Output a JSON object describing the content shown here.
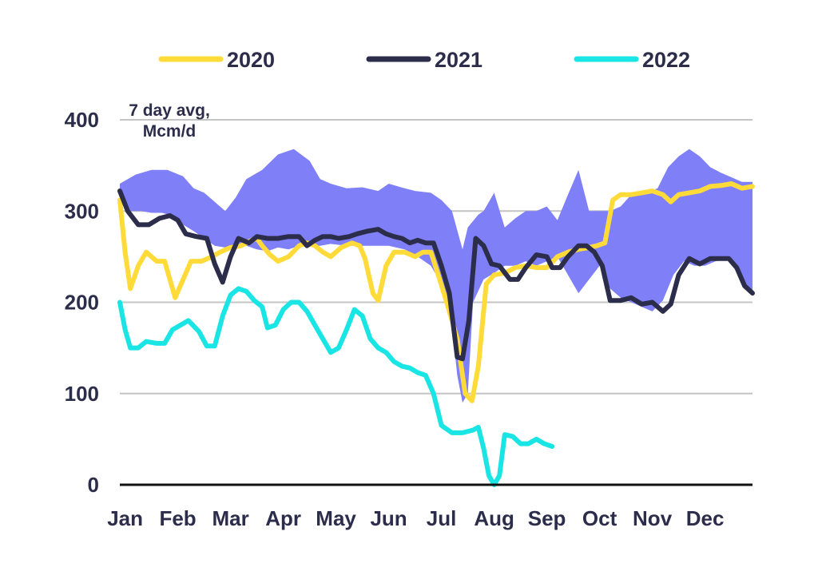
{
  "chart_data": {
    "type": "line",
    "unit_label_line1": "7 day avg,",
    "unit_label_line2": "Mcm/d",
    "ylim": [
      0,
      400
    ],
    "y_ticks": [
      "0",
      "100",
      "200",
      "300",
      "400"
    ],
    "x_ticks": [
      "Jan",
      "Feb",
      "Mar",
      "Apr",
      "May",
      "Jun",
      "Jul",
      "Aug",
      "Sep",
      "Oct",
      "Nov",
      "Dec"
    ],
    "x_range_months": [
      0,
      12
    ],
    "grid": true,
    "legend_position": "top",
    "range_band": {
      "color": "#7f7ff7",
      "upper": [
        [
          0,
          330
        ],
        [
          0.3,
          340
        ],
        [
          0.6,
          345
        ],
        [
          0.9,
          345
        ],
        [
          1.2,
          338
        ],
        [
          1.4,
          325
        ],
        [
          1.6,
          320
        ],
        [
          1.8,
          310
        ],
        [
          2.0,
          300
        ],
        [
          2.2,
          315
        ],
        [
          2.4,
          335
        ],
        [
          2.7,
          345
        ],
        [
          3.0,
          362
        ],
        [
          3.3,
          368
        ],
        [
          3.6,
          355
        ],
        [
          3.8,
          335
        ],
        [
          4.0,
          330
        ],
        [
          4.3,
          325
        ],
        [
          4.6,
          326
        ],
        [
          4.9,
          322
        ],
        [
          5.1,
          330
        ],
        [
          5.4,
          325
        ],
        [
          5.6,
          322
        ],
        [
          5.9,
          320
        ],
        [
          6.1,
          312
        ],
        [
          6.3,
          300
        ],
        [
          6.5,
          258
        ],
        [
          6.6,
          282
        ],
        [
          6.8,
          296
        ],
        [
          6.9,
          300
        ],
        [
          7.1,
          320
        ],
        [
          7.3,
          282
        ],
        [
          7.5,
          292
        ],
        [
          7.7,
          300
        ],
        [
          7.9,
          300
        ],
        [
          8.1,
          305
        ],
        [
          8.3,
          290
        ],
        [
          8.5,
          318
        ],
        [
          8.7,
          345
        ],
        [
          8.9,
          300
        ],
        [
          9.1,
          300
        ],
        [
          9.3,
          300
        ],
        [
          9.5,
          305
        ],
        [
          9.7,
          318
        ],
        [
          10.0,
          320
        ],
        [
          10.2,
          325
        ],
        [
          10.4,
          348
        ],
        [
          10.6,
          360
        ],
        [
          10.8,
          368
        ],
        [
          11.0,
          360
        ],
        [
          11.2,
          348
        ],
        [
          11.4,
          342
        ],
        [
          11.6,
          337
        ],
        [
          11.8,
          332
        ],
        [
          12.0,
          332
        ]
      ],
      "lower": [
        [
          0,
          310
        ],
        [
          0.2,
          300
        ],
        [
          0.4,
          300
        ],
        [
          0.6,
          298
        ],
        [
          0.8,
          298
        ],
        [
          1.0,
          295
        ],
        [
          1.2,
          285
        ],
        [
          1.4,
          278
        ],
        [
          1.6,
          270
        ],
        [
          1.8,
          262
        ],
        [
          2.0,
          260
        ],
        [
          2.2,
          262
        ],
        [
          2.4,
          262
        ],
        [
          2.6,
          258
        ],
        [
          2.8,
          256
        ],
        [
          3.0,
          260
        ],
        [
          3.2,
          258
        ],
        [
          3.4,
          262
        ],
        [
          3.6,
          262
        ],
        [
          3.8,
          262
        ],
        [
          4.0,
          264
        ],
        [
          4.3,
          262
        ],
        [
          4.6,
          262
        ],
        [
          4.9,
          262
        ],
        [
          5.1,
          262
        ],
        [
          5.4,
          258
        ],
        [
          5.6,
          252
        ],
        [
          5.9,
          240
        ],
        [
          6.1,
          220
        ],
        [
          6.3,
          175
        ],
        [
          6.4,
          120
        ],
        [
          6.5,
          90
        ],
        [
          6.6,
          100
        ],
        [
          6.7,
          200
        ],
        [
          6.9,
          225
        ],
        [
          7.1,
          232
        ],
        [
          7.3,
          240
        ],
        [
          7.5,
          240
        ],
        [
          7.7,
          245
        ],
        [
          7.9,
          240
        ],
        [
          8.1,
          245
        ],
        [
          8.3,
          250
        ],
        [
          8.5,
          230
        ],
        [
          8.7,
          210
        ],
        [
          8.9,
          225
        ],
        [
          9.1,
          240
        ],
        [
          9.3,
          215
        ],
        [
          9.5,
          205
        ],
        [
          9.7,
          200
        ],
        [
          9.9,
          195
        ],
        [
          10.1,
          190
        ],
        [
          10.3,
          202
        ],
        [
          10.5,
          230
        ],
        [
          10.7,
          245
        ],
        [
          10.9,
          240
        ],
        [
          11.1,
          240
        ],
        [
          11.3,
          245
        ],
        [
          11.5,
          247
        ],
        [
          11.7,
          240
        ],
        [
          11.9,
          215
        ],
        [
          12.0,
          208
        ]
      ]
    },
    "series": [
      {
        "name": "2020",
        "color": "#ffdb3a",
        "width": 6,
        "points": [
          [
            0,
            312
          ],
          [
            0.1,
            255
          ],
          [
            0.2,
            215
          ],
          [
            0.35,
            240
          ],
          [
            0.5,
            255
          ],
          [
            0.7,
            245
          ],
          [
            0.85,
            245
          ],
          [
            0.95,
            225
          ],
          [
            1.05,
            205
          ],
          [
            1.2,
            225
          ],
          [
            1.35,
            245
          ],
          [
            1.55,
            245
          ],
          [
            1.75,
            250
          ],
          [
            1.9,
            255
          ],
          [
            2.1,
            260
          ],
          [
            2.3,
            262
          ],
          [
            2.5,
            268
          ],
          [
            2.6,
            270
          ],
          [
            2.7,
            262
          ],
          [
            2.85,
            252
          ],
          [
            3.0,
            245
          ],
          [
            3.2,
            250
          ],
          [
            3.4,
            262
          ],
          [
            3.55,
            265
          ],
          [
            3.7,
            262
          ],
          [
            3.85,
            255
          ],
          [
            4.0,
            250
          ],
          [
            4.2,
            260
          ],
          [
            4.4,
            265
          ],
          [
            4.55,
            262
          ],
          [
            4.65,
            248
          ],
          [
            4.8,
            210
          ],
          [
            4.9,
            202
          ],
          [
            5.05,
            240
          ],
          [
            5.2,
            255
          ],
          [
            5.4,
            255
          ],
          [
            5.6,
            250
          ],
          [
            5.75,
            255
          ],
          [
            5.9,
            255
          ],
          [
            6.05,
            228
          ],
          [
            6.2,
            200
          ],
          [
            6.4,
            160
          ],
          [
            6.55,
            100
          ],
          [
            6.68,
            92
          ],
          [
            6.8,
            130
          ],
          [
            6.95,
            220
          ],
          [
            7.1,
            230
          ],
          [
            7.3,
            232
          ],
          [
            7.5,
            238
          ],
          [
            7.7,
            240
          ],
          [
            7.9,
            238
          ],
          [
            8.1,
            238
          ],
          [
            8.3,
            250
          ],
          [
            8.5,
            255
          ],
          [
            8.7,
            258
          ],
          [
            8.9,
            260
          ],
          [
            9.05,
            262
          ],
          [
            9.2,
            265
          ],
          [
            9.35,
            312
          ],
          [
            9.5,
            318
          ],
          [
            9.7,
            318
          ],
          [
            9.9,
            320
          ],
          [
            10.1,
            322
          ],
          [
            10.3,
            318
          ],
          [
            10.45,
            310
          ],
          [
            10.6,
            318
          ],
          [
            10.8,
            320
          ],
          [
            11.0,
            322
          ],
          [
            11.2,
            327
          ],
          [
            11.4,
            328
          ],
          [
            11.6,
            330
          ],
          [
            11.8,
            325
          ],
          [
            12.0,
            327
          ]
        ]
      },
      {
        "name": "2021",
        "color": "#2b2d4a",
        "width": 6,
        "points": [
          [
            0,
            322
          ],
          [
            0.15,
            300
          ],
          [
            0.35,
            285
          ],
          [
            0.55,
            285
          ],
          [
            0.75,
            292
          ],
          [
            0.95,
            295
          ],
          [
            1.1,
            290
          ],
          [
            1.25,
            275
          ],
          [
            1.45,
            272
          ],
          [
            1.65,
            270
          ],
          [
            1.8,
            242
          ],
          [
            1.95,
            222
          ],
          [
            2.1,
            250
          ],
          [
            2.25,
            270
          ],
          [
            2.45,
            265
          ],
          [
            2.6,
            272
          ],
          [
            2.8,
            270
          ],
          [
            3.0,
            270
          ],
          [
            3.2,
            272
          ],
          [
            3.4,
            272
          ],
          [
            3.55,
            262
          ],
          [
            3.7,
            268
          ],
          [
            3.85,
            272
          ],
          [
            4.0,
            272
          ],
          [
            4.15,
            270
          ],
          [
            4.35,
            272
          ],
          [
            4.5,
            275
          ],
          [
            4.7,
            278
          ],
          [
            4.9,
            280
          ],
          [
            5.05,
            275
          ],
          [
            5.2,
            272
          ],
          [
            5.35,
            270
          ],
          [
            5.5,
            265
          ],
          [
            5.65,
            268
          ],
          [
            5.8,
            265
          ],
          [
            5.95,
            265
          ],
          [
            6.1,
            240
          ],
          [
            6.25,
            210
          ],
          [
            6.4,
            140
          ],
          [
            6.5,
            138
          ],
          [
            6.62,
            180
          ],
          [
            6.75,
            270
          ],
          [
            6.9,
            262
          ],
          [
            7.05,
            242
          ],
          [
            7.2,
            240
          ],
          [
            7.4,
            225
          ],
          [
            7.55,
            225
          ],
          [
            7.7,
            238
          ],
          [
            7.9,
            252
          ],
          [
            8.1,
            250
          ],
          [
            8.2,
            238
          ],
          [
            8.35,
            238
          ],
          [
            8.5,
            250
          ],
          [
            8.7,
            262
          ],
          [
            8.85,
            262
          ],
          [
            9.0,
            255
          ],
          [
            9.15,
            240
          ],
          [
            9.3,
            202
          ],
          [
            9.5,
            202
          ],
          [
            9.7,
            205
          ],
          [
            9.9,
            198
          ],
          [
            10.1,
            200
          ],
          [
            10.3,
            190
          ],
          [
            10.45,
            198
          ],
          [
            10.6,
            230
          ],
          [
            10.8,
            248
          ],
          [
            11.0,
            242
          ],
          [
            11.2,
            248
          ],
          [
            11.4,
            248
          ],
          [
            11.55,
            248
          ],
          [
            11.7,
            238
          ],
          [
            11.85,
            218
          ],
          [
            12.0,
            210
          ]
        ]
      },
      {
        "name": "2022",
        "color": "#19e5e5",
        "width": 6,
        "points": [
          [
            0,
            200
          ],
          [
            0.1,
            170
          ],
          [
            0.2,
            150
          ],
          [
            0.35,
            150
          ],
          [
            0.5,
            157
          ],
          [
            0.7,
            155
          ],
          [
            0.85,
            155
          ],
          [
            1.0,
            170
          ],
          [
            1.15,
            175
          ],
          [
            1.3,
            180
          ],
          [
            1.5,
            168
          ],
          [
            1.65,
            152
          ],
          [
            1.8,
            152
          ],
          [
            1.95,
            185
          ],
          [
            2.1,
            208
          ],
          [
            2.25,
            215
          ],
          [
            2.4,
            212
          ],
          [
            2.55,
            202
          ],
          [
            2.7,
            195
          ],
          [
            2.8,
            172
          ],
          [
            2.95,
            175
          ],
          [
            3.1,
            192
          ],
          [
            3.25,
            200
          ],
          [
            3.4,
            200
          ],
          [
            3.55,
            190
          ],
          [
            3.7,
            175
          ],
          [
            3.85,
            160
          ],
          [
            4.0,
            145
          ],
          [
            4.15,
            150
          ],
          [
            4.3,
            170
          ],
          [
            4.45,
            192
          ],
          [
            4.6,
            185
          ],
          [
            4.75,
            160
          ],
          [
            4.9,
            150
          ],
          [
            5.05,
            145
          ],
          [
            5.2,
            135
          ],
          [
            5.35,
            130
          ],
          [
            5.5,
            128
          ],
          [
            5.65,
            123
          ],
          [
            5.8,
            120
          ],
          [
            5.95,
            100
          ],
          [
            6.1,
            65
          ],
          [
            6.3,
            57
          ],
          [
            6.5,
            57
          ],
          [
            6.7,
            60
          ],
          [
            6.8,
            63
          ],
          [
            6.9,
            40
          ],
          [
            7.0,
            10
          ],
          [
            7.1,
            0
          ],
          [
            7.2,
            10
          ],
          [
            7.3,
            55
          ],
          [
            7.45,
            53
          ],
          [
            7.6,
            45
          ],
          [
            7.75,
            45
          ],
          [
            7.9,
            50
          ],
          [
            8.05,
            45
          ],
          [
            8.2,
            42
          ]
        ]
      }
    ]
  },
  "legend": {
    "items": [
      {
        "label": "2020",
        "color": "#ffdb3a"
      },
      {
        "label": "2021",
        "color": "#2b2d4a"
      },
      {
        "label": "2022",
        "color": "#19e5e5"
      }
    ]
  }
}
